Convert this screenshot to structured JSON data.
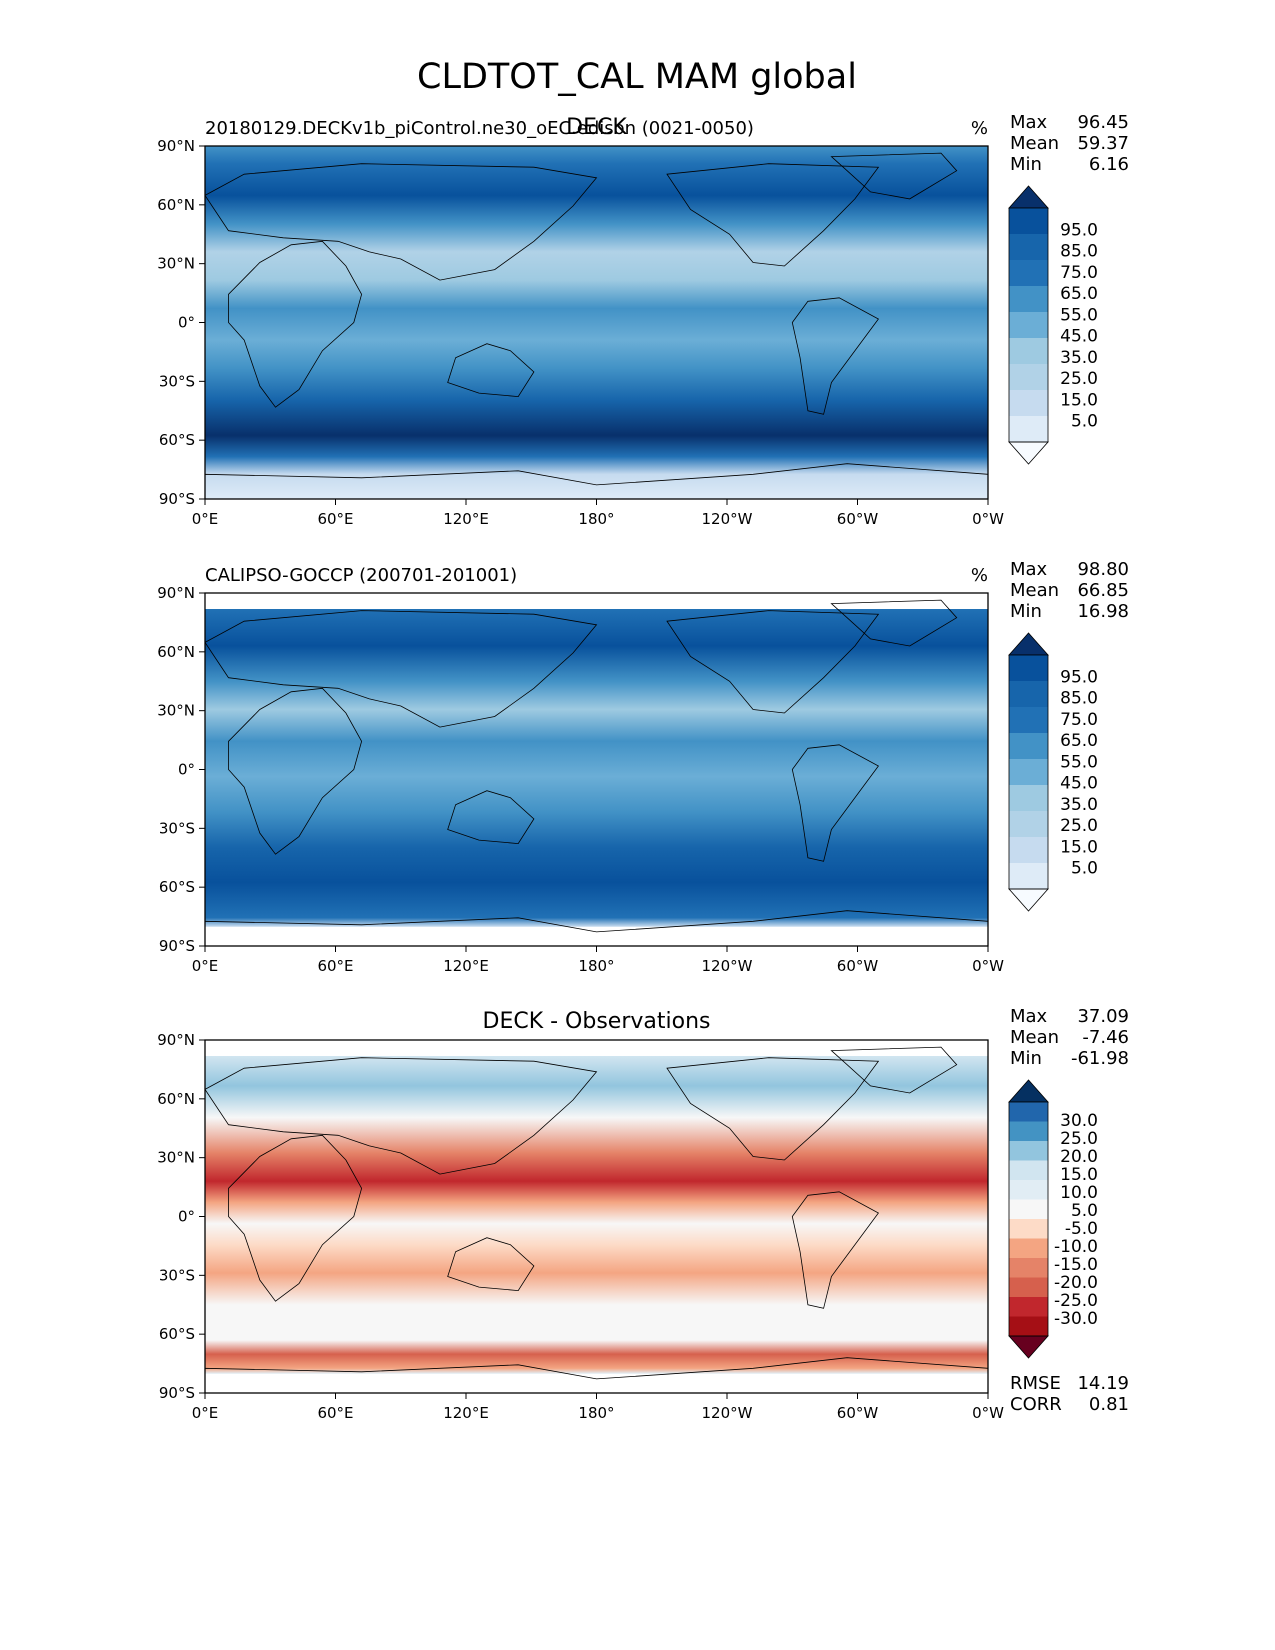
{
  "figure_title": "CLDTOT_CAL MAM global",
  "colors": {
    "sequential_blues": [
      "#f7fbff",
      "#deebf7",
      "#c6dbef",
      "#b1d2e7",
      "#9ecae1",
      "#6baed6",
      "#4292c6",
      "#2171b5",
      "#1765ab",
      "#08519c",
      "#08306b"
    ],
    "diverging_rdbu": [
      "#67001f",
      "#a50f15",
      "#c1272d",
      "#d6604d",
      "#e58368",
      "#f4a582",
      "#fddbc7",
      "#f7f7f7",
      "#e1edf4",
      "#d1e5f0",
      "#92c5de",
      "#4393c3",
      "#2166ac",
      "#053061"
    ],
    "coastline": "#000000"
  },
  "panels": [
    {
      "id": "test",
      "center_title": "DECK",
      "left_title": "20180129.DECKv1b_piControl.ne30_oEC.edison (0021-0050)",
      "units": "%",
      "stats": [
        {
          "label": "Max",
          "value": "96.45"
        },
        {
          "label": "Mean",
          "value": "59.37"
        },
        {
          "label": "Min",
          "value": "6.16"
        }
      ],
      "colorbar_labels": [
        "95.0",
        "85.0",
        "75.0",
        "65.0",
        "55.0",
        "45.0",
        "35.0",
        "25.0",
        "15.0",
        "5.0"
      ]
    },
    {
      "id": "reference",
      "center_title": "",
      "left_title": "CALIPSO-GOCCP (200701-201001)",
      "units": "%",
      "stats": [
        {
          "label": "Max",
          "value": "98.80"
        },
        {
          "label": "Mean",
          "value": "66.85"
        },
        {
          "label": "Min",
          "value": "16.98"
        }
      ],
      "colorbar_labels": [
        "95.0",
        "85.0",
        "75.0",
        "65.0",
        "55.0",
        "45.0",
        "35.0",
        "25.0",
        "15.0",
        "5.0"
      ]
    },
    {
      "id": "difference",
      "center_title": "DECK - Observations",
      "left_title": "",
      "units": "",
      "stats": [
        {
          "label": "Max",
          "value": "37.09"
        },
        {
          "label": "Mean",
          "value": "-7.46"
        },
        {
          "label": "Min",
          "value": "-61.98"
        }
      ],
      "colorbar_labels": [
        "30.0",
        "25.0",
        "20.0",
        "15.0",
        "10.0",
        "5.0",
        "-5.0",
        "-10.0",
        "-15.0",
        "-20.0",
        "-25.0",
        "-30.0"
      ],
      "metrics": [
        {
          "label": "RMSE",
          "value": "14.19"
        },
        {
          "label": "CORR",
          "value": "0.81"
        }
      ]
    }
  ],
  "axes": {
    "lat_ticks": [
      "90°N",
      "60°N",
      "30°N",
      "0°",
      "30°S",
      "60°S",
      "90°S"
    ],
    "lon_ticks": [
      "0°E",
      "60°E",
      "120°E",
      "180°",
      "120°W",
      "60°W",
      "0°W"
    ]
  }
}
